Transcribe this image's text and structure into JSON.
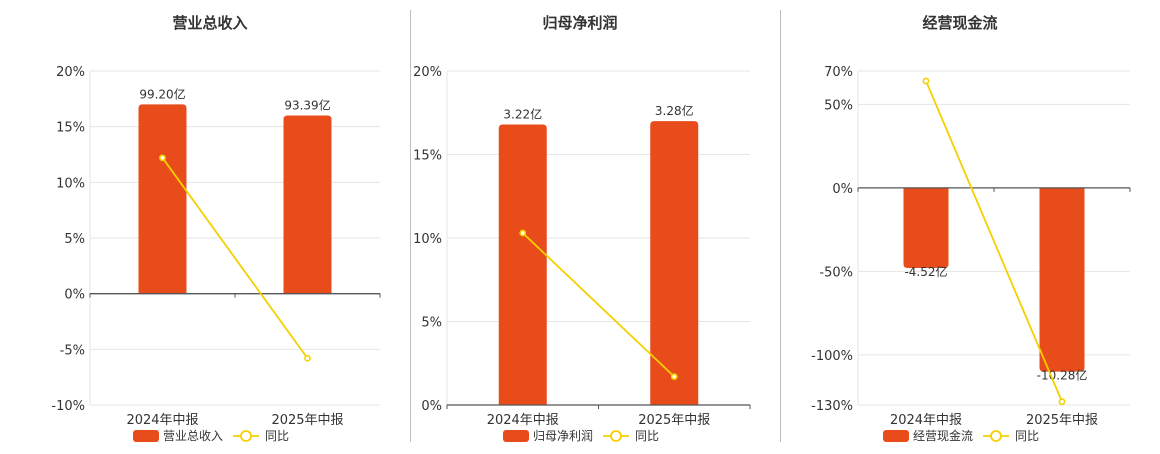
{
  "colors": {
    "bar": "#e84c1a",
    "line": "#f5d000",
    "grid": "#e6e6e6",
    "axis": "#555555"
  },
  "chart_data": [
    {
      "type": "bar",
      "title": "营业总收入",
      "categories": [
        "2024年中报",
        "2025年中报"
      ],
      "bar_labels": [
        "99.20亿",
        "93.39亿"
      ],
      "series": [
        {
          "name": "营业总收入",
          "kind": "bar",
          "values": [
            17.0,
            16.0
          ]
        },
        {
          "name": "同比",
          "kind": "line",
          "values": [
            12.2,
            -5.8
          ]
        }
      ],
      "yticks": [
        20,
        15,
        10,
        5,
        0,
        -5,
        -10
      ],
      "ytick_labels": [
        "20%",
        "15%",
        "10%",
        "5%",
        "0%",
        "-5%",
        "-10%"
      ],
      "ylim": [
        -10,
        20
      ],
      "grid": true,
      "legend_position": "bottom"
    },
    {
      "type": "bar",
      "title": "归母净利润",
      "categories": [
        "2024年中报",
        "2025年中报"
      ],
      "bar_labels": [
        "3.22亿",
        "3.28亿"
      ],
      "series": [
        {
          "name": "归母净利润",
          "kind": "bar",
          "values": [
            16.8,
            17.0
          ]
        },
        {
          "name": "同比",
          "kind": "line",
          "values": [
            10.3,
            1.7
          ]
        }
      ],
      "yticks": [
        20,
        15,
        10,
        5,
        0
      ],
      "ytick_labels": [
        "20%",
        "15%",
        "10%",
        "5%",
        "0%"
      ],
      "ylim": [
        0,
        20
      ],
      "grid": true,
      "legend_position": "bottom"
    },
    {
      "type": "bar",
      "title": "经营现金流",
      "categories": [
        "2024年中报",
        "2025年中报"
      ],
      "bar_labels": [
        "-4.52亿",
        "-10.28亿"
      ],
      "series": [
        {
          "name": "经营现金流",
          "kind": "bar",
          "values": [
            -48,
            -110
          ]
        },
        {
          "name": "同比",
          "kind": "line",
          "values": [
            64,
            -128
          ]
        }
      ],
      "yticks": [
        70,
        50,
        0,
        -50,
        -100,
        -130
      ],
      "ytick_labels": [
        "70%",
        "50%",
        "0%",
        "-50%",
        "-100%",
        "-130%"
      ],
      "ylim": [
        -130,
        70
      ],
      "grid": true,
      "legend_position": "bottom"
    }
  ]
}
